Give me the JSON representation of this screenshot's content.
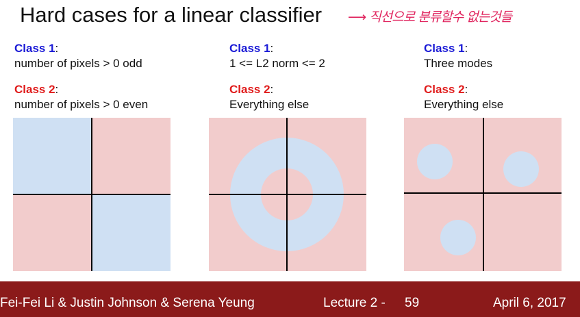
{
  "title": "Hard cases for a linear classifier",
  "annotation": "직선으로 분류할수 없는것들",
  "columns": [
    {
      "class1_label": "Class 1",
      "class1_desc": "number of pixels > 0 odd",
      "class2_label": "Class 2",
      "class2_desc": "number of pixels > 0 even"
    },
    {
      "class1_label": "Class 1",
      "class1_desc": "1 <= L2 norm <= 2",
      "class2_label": "Class 2",
      "class2_desc": "Everything else"
    },
    {
      "class1_label": "Class 1",
      "class1_desc": "Three modes",
      "class2_label": "Class 2",
      "class2_desc": "Everything else"
    }
  ],
  "colors": {
    "class1_blue_region": "#cfe0f3",
    "class2_red_region": "#f2cccc",
    "title_blue": "#1a1ad6",
    "title_red": "#e01b1b",
    "footer_bg": "#8b1a1a"
  },
  "footer": {
    "authors": "Fei-Fei Li & Justin Johnson & Serena Yeung",
    "lecture": "Lecture 2 -",
    "page": "59",
    "date": "April 6, 2017"
  }
}
